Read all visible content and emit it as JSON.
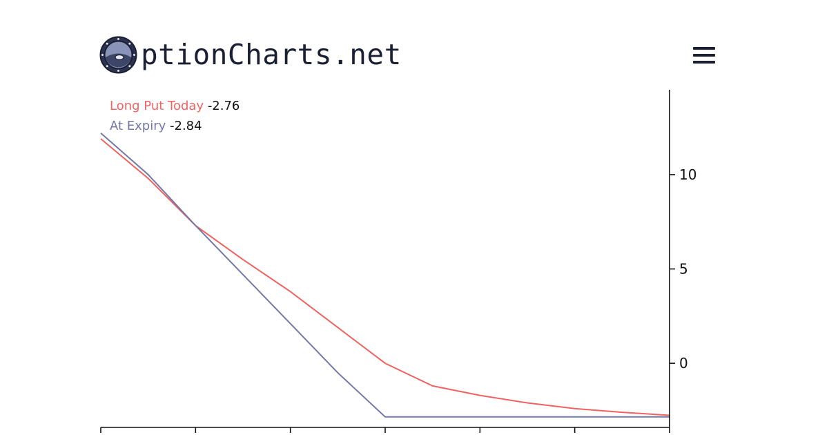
{
  "header": {
    "logo_text": "ptionCharts.net",
    "logo_icon": "porthole-logo-icon",
    "menu_icon": "hamburger-menu-icon"
  },
  "legend": {
    "today_label": "Long Put Today",
    "today_value": "-2.76",
    "expiry_label": "At Expiry",
    "expiry_value": "-2.84"
  },
  "colors": {
    "today": "#f06262",
    "expiry": "#7278a8",
    "axis": "#111111",
    "brand_dark": "#1b1f33"
  },
  "chart_data": {
    "type": "line",
    "x": [
      0,
      0.5,
      1,
      1.5,
      2,
      2.5,
      3,
      3.5,
      4,
      4.5,
      5,
      5.5,
      6
    ],
    "series": [
      {
        "name": "Long Put Today",
        "values": [
          11.9,
          9.8,
          7.3,
          5.5,
          3.8,
          1.9,
          0.0,
          -1.2,
          -1.7,
          -2.1,
          -2.4,
          -2.6,
          -2.76
        ]
      },
      {
        "name": "At Expiry",
        "values": [
          12.2,
          10.0,
          7.3,
          4.7,
          2.1,
          -0.5,
          -2.84,
          -2.84,
          -2.84,
          -2.84,
          -2.84,
          -2.84,
          -2.84
        ]
      }
    ],
    "xlim": [
      0,
      6
    ],
    "ylim": [
      -3.4,
      14.5
    ],
    "y_ticks": [
      0,
      5,
      10
    ],
    "x_tick_count": 7,
    "y_axis_position": "right",
    "grid": false,
    "legend_position": "top-left"
  }
}
